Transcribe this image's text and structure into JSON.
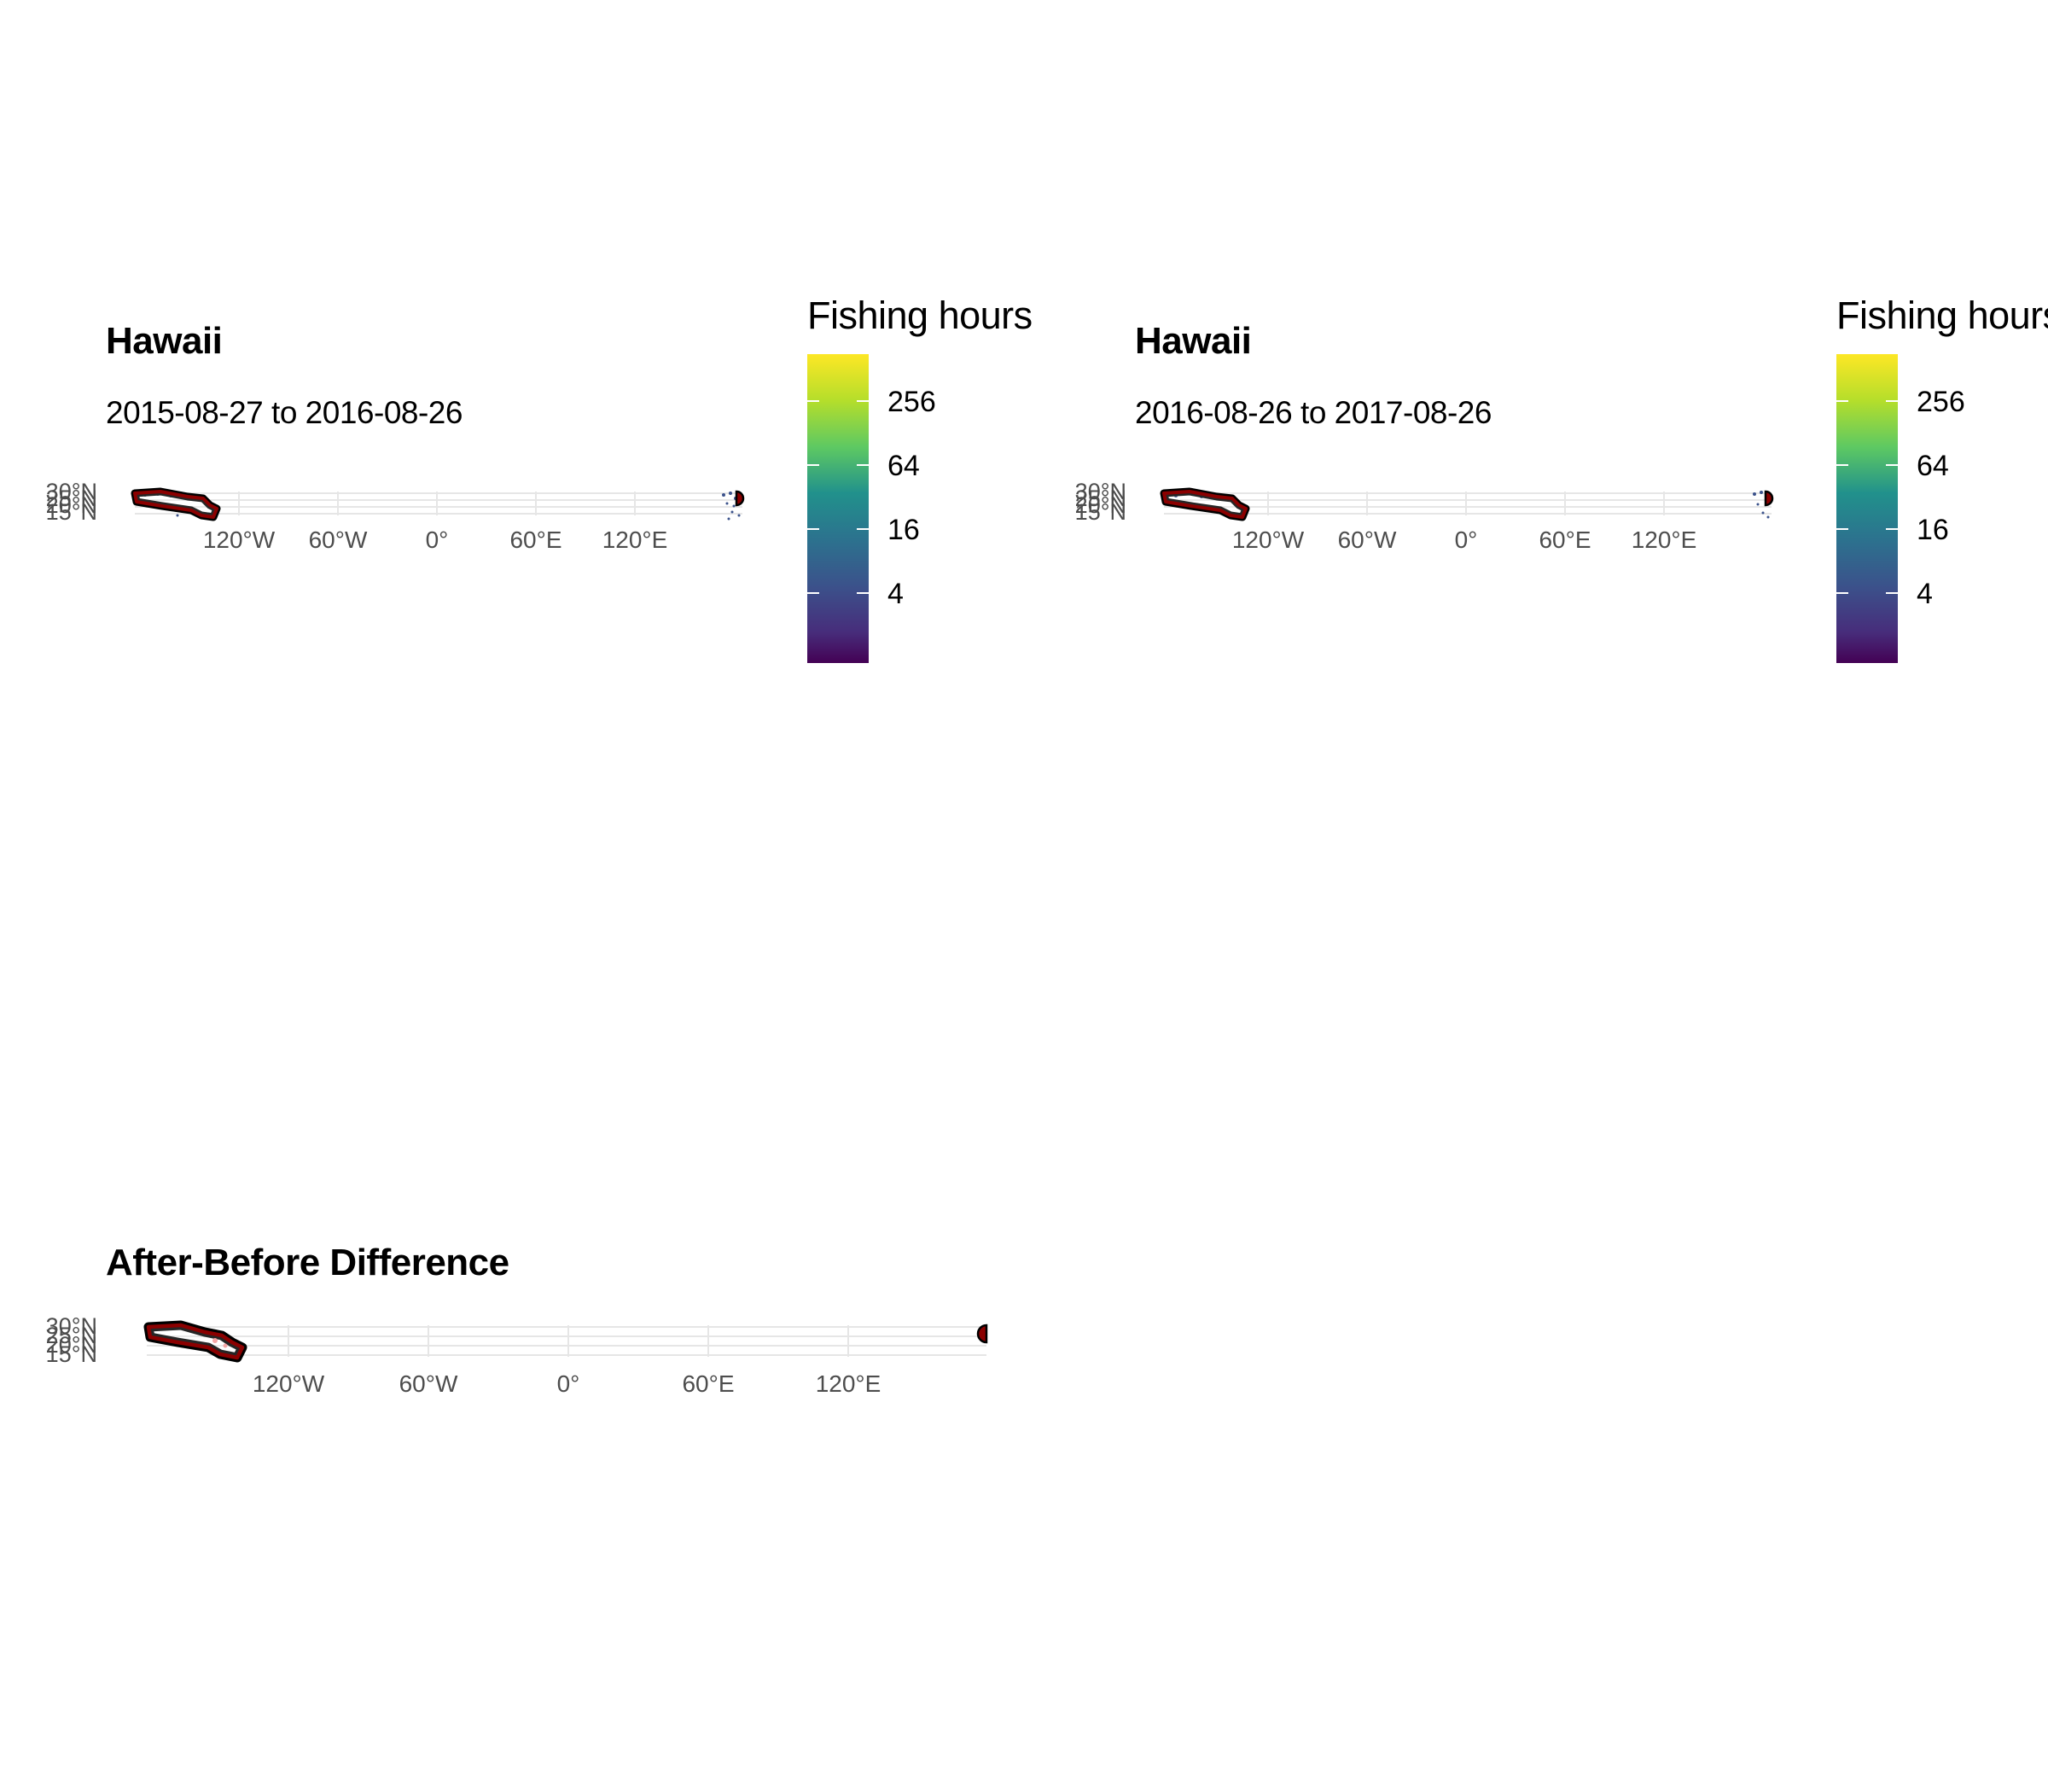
{
  "panels": [
    {
      "title": "Hawaii",
      "subtitle": "2015-08-27 to 2016-08-26",
      "legend": {
        "title": "Fishing hours",
        "scale": "log2",
        "breaks": [
          "256",
          "64",
          "16",
          "4"
        ],
        "colors": [
          "#fde725",
          "#5ec962",
          "#21918c",
          "#3b528b",
          "#440154"
        ]
      }
    },
    {
      "title": "Hawaii",
      "subtitle": "2016-08-26 to 2017-08-26",
      "legend": {
        "title": "Fishing hours",
        "scale": "log2",
        "breaks": [
          "256",
          "64",
          "16",
          "4"
        ],
        "colors": [
          "#fde725",
          "#5ec962",
          "#21918c",
          "#3b528b",
          "#440154"
        ]
      }
    },
    {
      "title": "After-Before Difference"
    }
  ],
  "axes": {
    "x_ticks": [
      "120°W",
      "60°W",
      "0°",
      "60°E",
      "120°E"
    ],
    "y_ticks": [
      "30°N",
      "25°N",
      "20°N",
      "15°N"
    ]
  },
  "colors": {
    "boundary_fill": "#8b0000",
    "boundary_outline": "#000000",
    "grid": "#e6e6e6",
    "tick_text": "#4d4d4d",
    "fishing_points": "#3b528b"
  }
}
